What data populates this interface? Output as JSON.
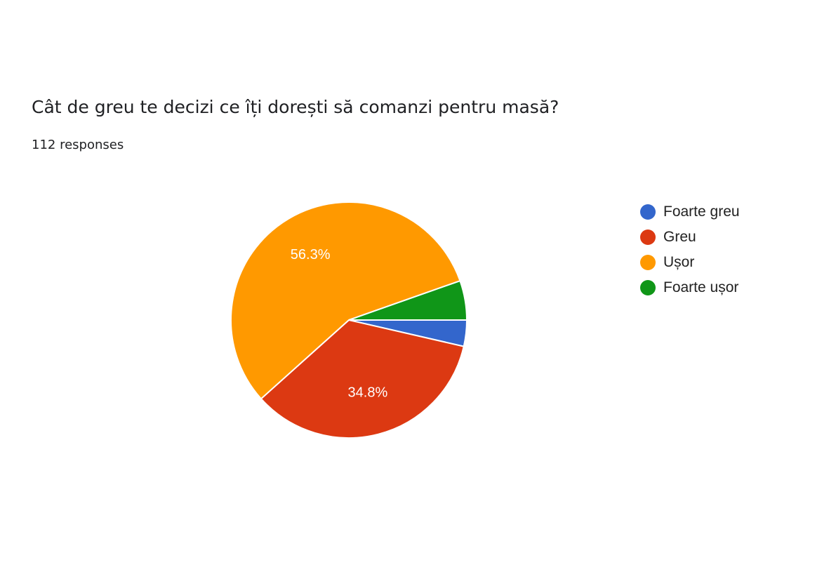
{
  "question": {
    "title": "Cât de greu te decizi ce îți dorești să comanzi pentru masă?",
    "responses": "112 responses"
  },
  "chart_data": {
    "type": "pie",
    "total_responses": 112,
    "slices": [
      {
        "label": "Foarte greu",
        "percent": 3.6,
        "percent_label": "",
        "color": "#3366cc"
      },
      {
        "label": "Greu",
        "percent": 34.8,
        "percent_label": "34.8%",
        "color": "#dc3912"
      },
      {
        "label": "Ușor",
        "percent": 56.3,
        "percent_label": "56.3%",
        "color": "#ff9900"
      },
      {
        "label": "Foarte ușor",
        "percent": 5.4,
        "percent_label": "",
        "color": "#109618"
      }
    ],
    "legend_position": "right"
  }
}
